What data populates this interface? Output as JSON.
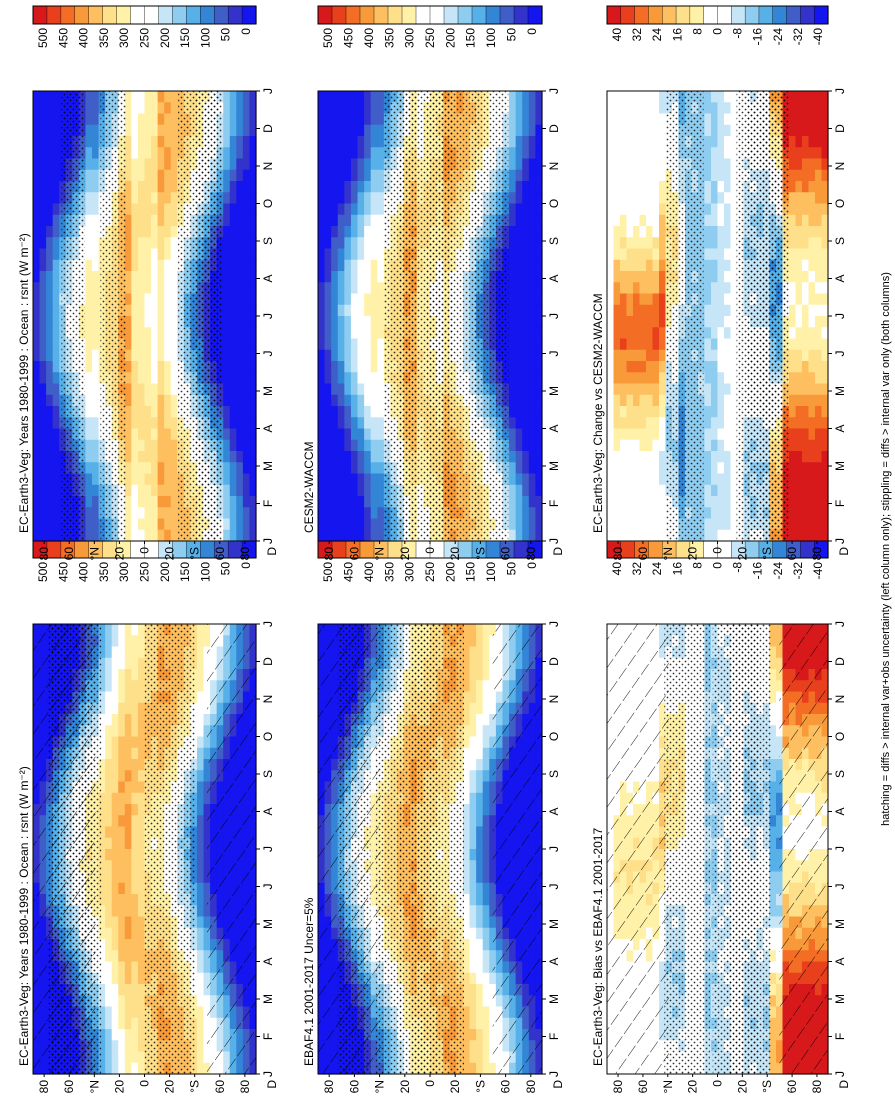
{
  "figure": {
    "footnote": "hatching = diffs > internal var+obs uncertainty (left column only); stippling = diffs > internal var only (both columns)",
    "units_suffix": "rsnt (W m",
    "units_sup": "-2",
    "units_close": ")"
  },
  "chart_data": [
    {
      "id": "p1",
      "type": "heatmap",
      "title": "EC-Earth3-Veg: Years 1980-1999 : Ocean : rsnt (W m⁻²)",
      "title_main": "EC-Earth3-Veg: Years 1980-1999 : Ocean :",
      "x_ticks": [
        "J",
        "F",
        "M",
        "A",
        "M",
        "J",
        "J",
        "A",
        "S",
        "O",
        "N",
        "D",
        "J"
      ],
      "y_ticks": [
        "80",
        "60",
        "°N",
        "20",
        "0",
        "20",
        "°S",
        "60",
        "80"
      ],
      "y_label_end": "D",
      "colorbar": {
        "ticks": [
          "500",
          "450",
          "400",
          "350",
          "300",
          "250",
          "200",
          "150",
          "100",
          "50",
          "0"
        ],
        "range": [
          0,
          500
        ]
      },
      "hatching": true,
      "stippling": true
    },
    {
      "id": "p2",
      "type": "heatmap",
      "title": "EC-Earth3-Veg: Years 1980-1999 : Ocean : rsnt (W m⁻²)",
      "title_main": "EC-Earth3-Veg: Years 1980-1999 : Ocean :",
      "x_ticks": [
        "J",
        "F",
        "M",
        "A",
        "M",
        "J",
        "J",
        "A",
        "S",
        "O",
        "N",
        "D",
        "J"
      ],
      "y_ticks": [
        "80",
        "60",
        "°N",
        "20",
        "0",
        "20",
        "°S",
        "60",
        "80"
      ],
      "y_label_end": "D",
      "colorbar": {
        "ticks": [
          "500",
          "450",
          "400",
          "350",
          "300",
          "250",
          "200",
          "150",
          "100",
          "50",
          "0"
        ],
        "range": [
          0,
          500
        ]
      },
      "hatching": false,
      "stippling": true
    },
    {
      "id": "p3",
      "type": "heatmap",
      "title": "EBAF4.1 2001-2017 Uncer=5%",
      "x_ticks": [
        "J",
        "F",
        "M",
        "A",
        "M",
        "J",
        "J",
        "A",
        "S",
        "O",
        "N",
        "D",
        "J"
      ],
      "y_ticks": [
        "80",
        "60",
        "°N",
        "20",
        "0",
        "20",
        "°S",
        "60",
        "80"
      ],
      "y_label_end": "D",
      "colorbar": {
        "ticks": [
          "500",
          "450",
          "400",
          "350",
          "300",
          "250",
          "200",
          "150",
          "100",
          "50",
          "0"
        ],
        "range": [
          0,
          500
        ]
      },
      "hatching": true,
      "stippling": true
    },
    {
      "id": "p4",
      "type": "heatmap",
      "title": "CESM2-WACCM",
      "x_ticks": [
        "J",
        "F",
        "M",
        "A",
        "M",
        "J",
        "J",
        "A",
        "S",
        "O",
        "N",
        "D",
        "J"
      ],
      "y_ticks": [
        "80",
        "60",
        "°N",
        "20",
        "0",
        "20",
        "°S",
        "60",
        "80"
      ],
      "y_label_end": "D",
      "colorbar": {
        "ticks": [
          "500",
          "450",
          "400",
          "350",
          "300",
          "250",
          "200",
          "150",
          "100",
          "50",
          "0"
        ],
        "range": [
          0,
          500
        ]
      },
      "hatching": false,
      "stippling": true
    },
    {
      "id": "p5",
      "type": "heatmap",
      "title": "EC-Earth3-Veg: Bias vs EBAF4.1 2001-2017",
      "x_ticks": [
        "J",
        "F",
        "M",
        "A",
        "M",
        "J",
        "J",
        "A",
        "S",
        "O",
        "N",
        "D",
        "J"
      ],
      "y_ticks": [
        "80",
        "60",
        "°N",
        "20",
        "0",
        "20",
        "°S",
        "60",
        "80"
      ],
      "y_label_end": "D",
      "colorbar": {
        "ticks": [
          "40",
          "32",
          "24",
          "16",
          "8",
          "0",
          "-8",
          "-16",
          "-24",
          "-32",
          "-40"
        ],
        "range": [
          -40,
          40
        ]
      },
      "hatching": true,
      "stippling": true
    },
    {
      "id": "p6",
      "type": "heatmap",
      "title": "EC-Earth3-Veg: Change vs CESM2-WACCM",
      "x_ticks": [
        "J",
        "F",
        "M",
        "A",
        "M",
        "J",
        "J",
        "A",
        "S",
        "O",
        "N",
        "D",
        "J"
      ],
      "y_ticks": [
        "80",
        "60",
        "°N",
        "20",
        "0",
        "20",
        "°S",
        "60",
        "80"
      ],
      "y_label_end": "D",
      "colorbar": {
        "ticks": [
          "40",
          "32",
          "24",
          "16",
          "8",
          "0",
          "-8",
          "-16",
          "-24",
          "-32",
          "-40"
        ],
        "range": [
          -40,
          40
        ]
      },
      "hatching": false,
      "stippling": true
    }
  ],
  "palette": [
    "#d7191c",
    "#e8401c",
    "#f46d25",
    "#f99a3a",
    "#fdbf5f",
    "#fee08b",
    "#fff2a8",
    "#ffffff",
    "#ffffff",
    "#c6e6f8",
    "#8fcdf0",
    "#57b0e8",
    "#3385d6",
    "#3f5ec8",
    "#3333cc",
    "#1515f0"
  ]
}
